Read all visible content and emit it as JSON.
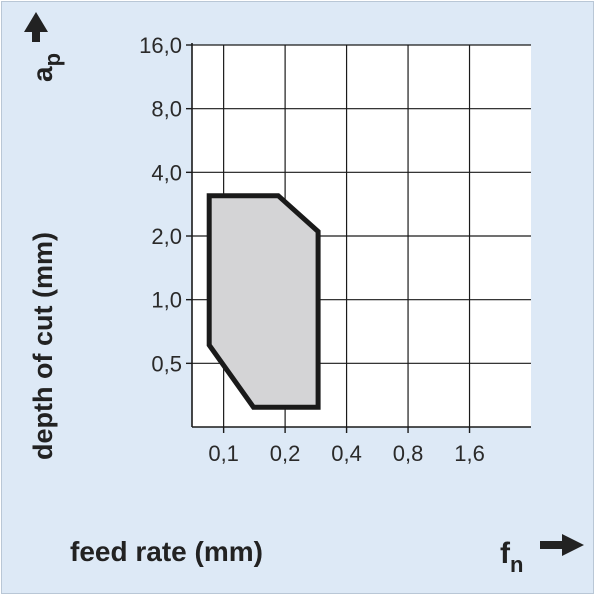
{
  "chart_data": {
    "type": "area",
    "x_axis": {
      "label": "feed rate (mm)",
      "symbol": "f",
      "symbol_subscript": "n",
      "scale": "log2",
      "ticks": [
        0.1,
        0.2,
        0.4,
        0.8,
        1.6
      ],
      "tick_labels": [
        "0,1",
        "0,2",
        "0,4",
        "0,8",
        "1,6"
      ],
      "range": [
        0.07,
        3.2
      ]
    },
    "y_axis": {
      "label": "depth of cut (mm)",
      "symbol": "a",
      "symbol_subscript": "p",
      "scale": "log2",
      "ticks": [
        0.5,
        1.0,
        2.0,
        4.0,
        8.0,
        16.0
      ],
      "tick_labels": [
        "0,5",
        "1,0",
        "2,0",
        "4,0",
        "8,0",
        "16,0"
      ],
      "range": [
        0.25,
        16.0
      ]
    },
    "grid": true,
    "series": [
      {
        "points": [
          {
            "x": 0.085,
            "y": 3.1
          },
          {
            "x": 0.185,
            "y": 3.1
          },
          {
            "x": 0.29,
            "y": 2.1
          },
          {
            "x": 0.29,
            "y": 0.31
          },
          {
            "x": 0.14,
            "y": 0.31
          },
          {
            "x": 0.085,
            "y": 0.61
          }
        ],
        "fill": "#d4d4d6",
        "stroke": "#1a1a1a"
      }
    ]
  },
  "colors": {
    "background": "#dde9f6",
    "plot_background": "#ffffff",
    "grid": "#1a1a1a",
    "region_fill": "#d4d4d6",
    "region_stroke": "#1a1a1a"
  },
  "icons": {
    "x_arrow": "arrow-right-icon",
    "y_arrow": "arrow-up-icon"
  }
}
